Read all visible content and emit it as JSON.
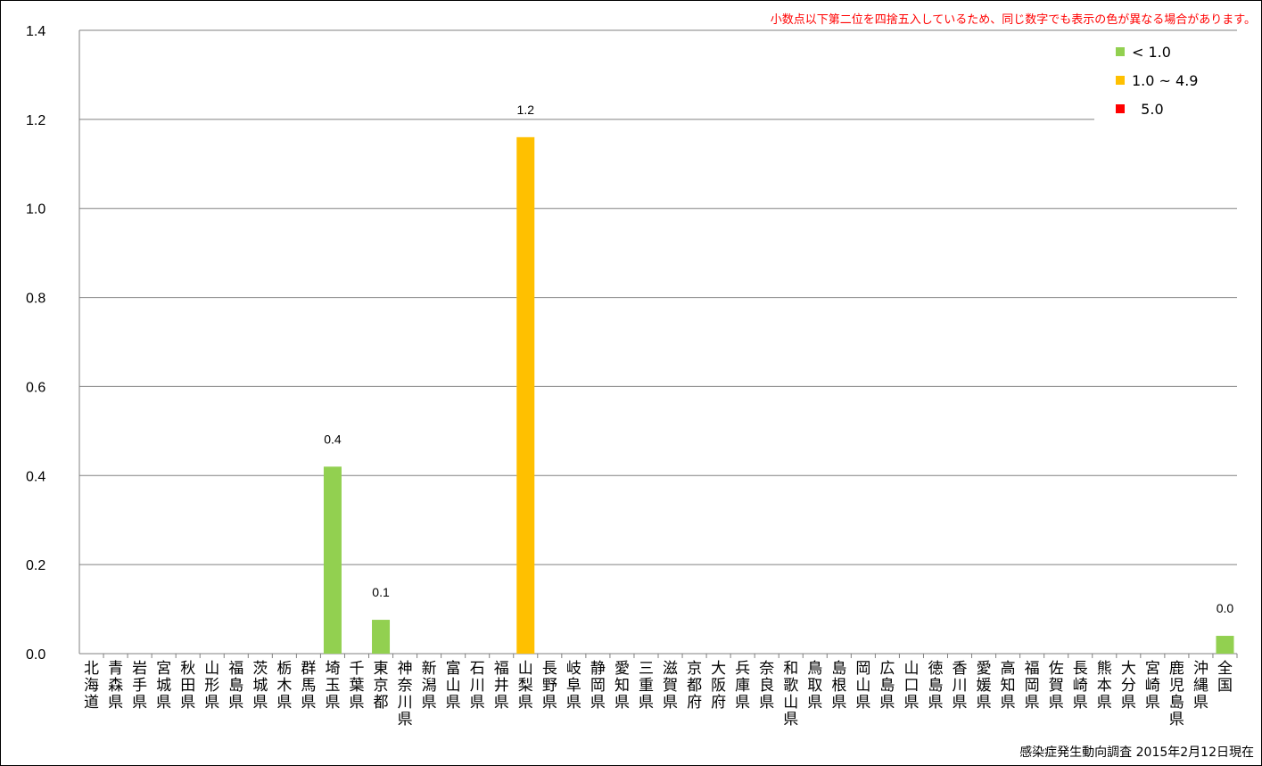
{
  "note": "小数点以下第二位を四捨五入しているため、同じ数字でも表示の色が異なる場合があります。",
  "source": "感染症発生動向調査 2015年2月12日現在",
  "legend": [
    {
      "label": "< 1.0",
      "color": "#92d050"
    },
    {
      "label": "1.0 ~ 4.9",
      "color": "#ffc000"
    },
    {
      "label": "  5.0",
      "color": "#ff0000"
    }
  ],
  "chart_data": {
    "type": "bar",
    "title": "",
    "xlabel": "",
    "ylabel": "",
    "ylim": [
      0,
      1.4
    ],
    "yticks": [
      "0.0",
      "0.2",
      "0.4",
      "0.6",
      "0.8",
      "1.0",
      "1.2",
      "1.4"
    ],
    "grid": true,
    "legend_position": "top-right",
    "categories": [
      "北海道",
      "青森県",
      "岩手県",
      "宮城県",
      "秋田県",
      "山形県",
      "福島県",
      "茨城県",
      "栃木県",
      "群馬県",
      "埼玉県",
      "千葉県",
      "東京都",
      "神奈川県",
      "新潟県",
      "富山県",
      "石川県",
      "福井県",
      "山梨県",
      "長野県",
      "岐阜県",
      "静岡県",
      "愛知県",
      "三重県",
      "滋賀県",
      "京都府",
      "大阪府",
      "兵庫県",
      "奈良県",
      "和歌山県",
      "鳥取県",
      "島根県",
      "岡山県",
      "広島県",
      "山口県",
      "徳島県",
      "香川県",
      "愛媛県",
      "高知県",
      "福岡県",
      "佐賀県",
      "長崎県",
      "熊本県",
      "大分県",
      "宮崎県",
      "鹿児島県",
      "沖縄県",
      "全国"
    ],
    "values": [
      0,
      0,
      0,
      0,
      0,
      0,
      0,
      0,
      0,
      0,
      0.42,
      0,
      0.076,
      0,
      0,
      0,
      0,
      0,
      1.16,
      0,
      0,
      0,
      0,
      0,
      0,
      0,
      0,
      0,
      0,
      0,
      0,
      0,
      0,
      0,
      0,
      0,
      0,
      0,
      0,
      0,
      0,
      0,
      0,
      0,
      0,
      0,
      0,
      0.04
    ],
    "data_labels": {
      "10": "0.4",
      "12": "0.1",
      "18": "1.2",
      "47": "0.0"
    },
    "colors": {
      "low": "#92d050",
      "mid": "#ffc000",
      "high": "#ff0000"
    },
    "grid_color": "#808080"
  }
}
